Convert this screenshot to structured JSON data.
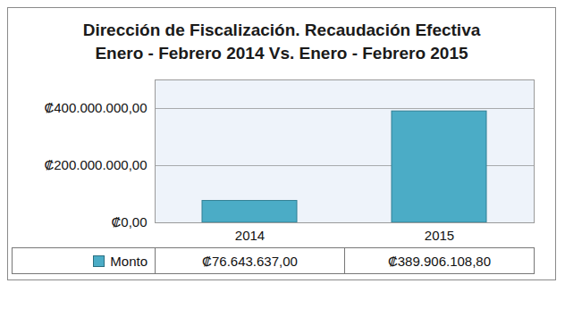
{
  "chart_data": {
    "type": "bar",
    "title": "Dirección de Fiscalización.  Recaudación Efectiva\nEnero - Febrero 2014  Vs. Enero - Febrero 2015",
    "categories": [
      "2014",
      "2015"
    ],
    "series": [
      {
        "name": "Monto",
        "color": "#4bacc6",
        "values": [
          76643637.0,
          389906108.8
        ],
        "value_labels": [
          "₡76.643.637,00",
          "₡389.906.108,80"
        ]
      }
    ],
    "ylim": [
      0,
      500000000
    ],
    "yticks": [
      {
        "value": 0,
        "label": "₡0,00"
      },
      {
        "value": 200000000,
        "label": "₡200.000.000,00"
      },
      {
        "value": 400000000,
        "label": "₡400.000.000,00"
      }
    ],
    "grid": true
  }
}
